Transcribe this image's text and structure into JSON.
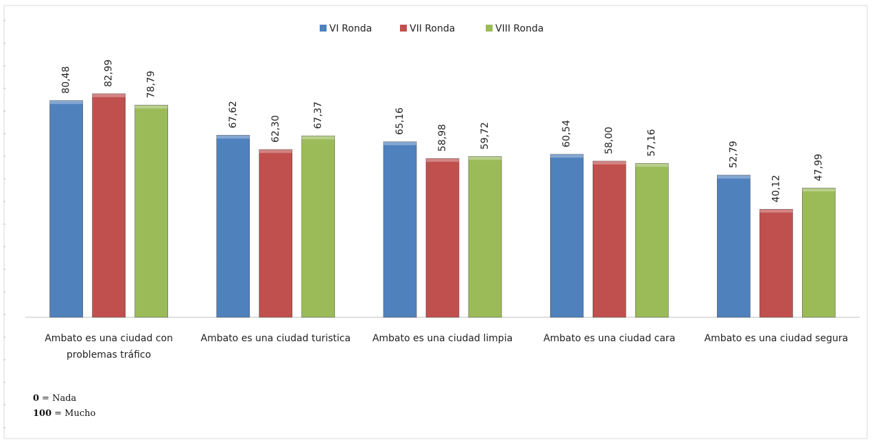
{
  "chart_data": {
    "type": "bar",
    "categories": [
      "Ambato es una ciudad con problemas tráfico",
      "Ambato es una ciudad turistica",
      "Ambato es una ciudad limpia",
      "Ambato es una ciudad cara",
      "Ambato es una ciudad segura"
    ],
    "series": [
      {
        "name": "VI Ronda",
        "color": "#4f81bd",
        "values": [
          80.48,
          67.62,
          65.16,
          60.54,
          52.79
        ],
        "value_labels": [
          "80,48",
          "67,62",
          "65,16",
          "60,54",
          "52,79"
        ]
      },
      {
        "name": "VII Ronda",
        "color": "#c0504d",
        "values": [
          82.99,
          62.3,
          58.98,
          58.0,
          40.12
        ],
        "value_labels": [
          "82,99",
          "62,30",
          "58,98",
          "58,00",
          "40,12"
        ]
      },
      {
        "name": "VIII Ronda",
        "color": "#9bbb59",
        "values": [
          78.79,
          67.37,
          59.72,
          57.16,
          47.99
        ],
        "value_labels": [
          "78,79",
          "67,37",
          "59,72",
          "57,16",
          "47,99"
        ]
      }
    ],
    "ylim": [
      0,
      100
    ],
    "legend": "top",
    "notes": [
      [
        "0",
        "= Nada"
      ],
      [
        "100",
        "= Mucho"
      ]
    ]
  }
}
